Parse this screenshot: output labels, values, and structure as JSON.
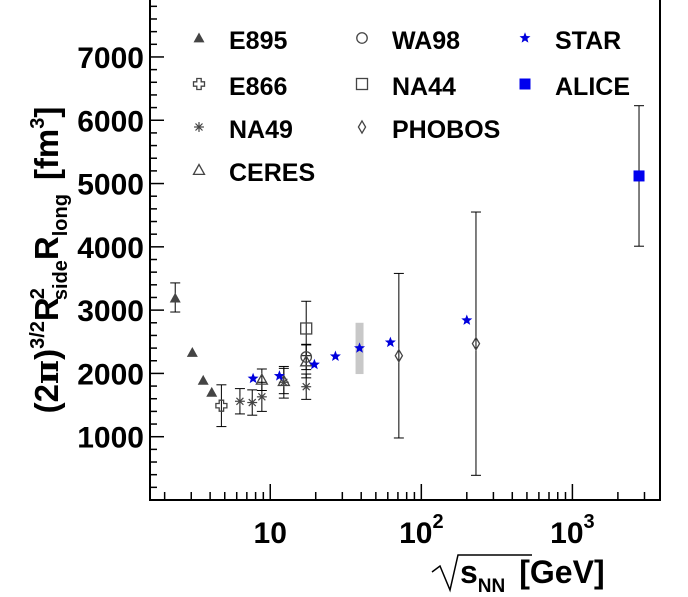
{
  "chart_data": {
    "type": "scatter",
    "xscale": "log",
    "xlim": [
      1.6,
      3800
    ],
    "ylim": [
      0,
      7900
    ],
    "grid": false,
    "legend_position": "top (inside plot)",
    "ylabel": {
      "prefix": "(2",
      "pi": "π",
      "close": ")",
      "exp": "3/2",
      "r1": "R",
      "r1_sup": "2",
      "r1_sub": "side",
      "r2": "R",
      "r2_sub": "long",
      "unit_open": "[fm",
      "unit_exp": "3",
      "unit_close": "]"
    },
    "xlabel": {
      "sqrt_sign": "√",
      "s": "s",
      "s_sub": "NN",
      "unit": "[GeV]"
    },
    "y_ticks": [
      "1000",
      "2000",
      "3000",
      "4000",
      "5000",
      "6000",
      "7000"
    ],
    "x_ticks": [
      {
        "base": "10",
        "exp": ""
      },
      {
        "base": "10",
        "exp": "2"
      },
      {
        "base": "10",
        "exp": "3"
      }
    ],
    "series": [
      {
        "name": "E895",
        "marker": "triangle",
        "color": "#444444",
        "points": [
          {
            "x": 2.35,
            "y": 3190,
            "yerr": [
              220,
              240
            ]
          },
          {
            "x": 3.05,
            "y": 2330,
            "yerr": [
              0,
              0
            ]
          },
          {
            "x": 3.6,
            "y": 1890,
            "yerr": [
              0,
              0
            ]
          },
          {
            "x": 4.1,
            "y": 1700,
            "yerr": [
              0,
              0
            ]
          }
        ]
      },
      {
        "name": "E866",
        "marker": "cross",
        "color": "#444444",
        "points": [
          {
            "x": 4.75,
            "y": 1490,
            "yerr": [
              330,
              330
            ]
          }
        ]
      },
      {
        "name": "NA49",
        "marker": "asterisk",
        "color": "#444444",
        "points": [
          {
            "x": 6.3,
            "y": 1560,
            "yerr": [
              200,
              200
            ]
          },
          {
            "x": 7.6,
            "y": 1540,
            "yerr": [
              200,
              200
            ]
          },
          {
            "x": 8.8,
            "y": 1630,
            "yerr": [
              230,
              230
            ]
          },
          {
            "x": 12.3,
            "y": 1860,
            "yerr": [
              250,
              250
            ]
          },
          {
            "x": 17.3,
            "y": 1790,
            "yerr": [
              200,
              200
            ]
          }
        ]
      },
      {
        "name": "CERES",
        "marker": "open-triangle",
        "color": "#444444",
        "points": [
          {
            "x": 8.8,
            "y": 1900,
            "yerr": [
              170,
              170
            ]
          },
          {
            "x": 12.3,
            "y": 1880,
            "yerr": [
              200,
              200
            ]
          },
          {
            "x": 17.3,
            "y": 2190,
            "yerr": [
              260,
              260
            ]
          }
        ]
      },
      {
        "name": "WA98",
        "marker": "open-circle",
        "color": "#444444",
        "points": [
          {
            "x": 17.3,
            "y": 2260,
            "yerr": [
              200,
              200
            ]
          }
        ]
      },
      {
        "name": "NA44",
        "marker": "open-square",
        "color": "#444444",
        "points": [
          {
            "x": 17.3,
            "y": 2710,
            "yerr": [
              430,
              430
            ]
          }
        ]
      },
      {
        "name": "PHOBOS",
        "marker": "open-diamond",
        "color": "#444444",
        "points": [
          {
            "x": 71,
            "y": 2280,
            "yerr": [
              1300,
              1300
            ]
          },
          {
            "x": 230,
            "y": 2470,
            "yerr": [
              2080,
              2080
            ]
          }
        ]
      },
      {
        "name": "STAR",
        "marker": "star",
        "color": "#0000dd",
        "points": [
          {
            "x": 7.7,
            "y": 1920,
            "yerr": [
              0,
              0
            ]
          },
          {
            "x": 11.5,
            "y": 1960,
            "yerr": [
              0,
              0
            ]
          },
          {
            "x": 19.6,
            "y": 2140,
            "yerr": [
              0,
              0
            ]
          },
          {
            "x": 27,
            "y": 2270,
            "yerr": [
              0,
              0
            ]
          },
          {
            "x": 39,
            "y": 2400,
            "yerr": [
              0,
              0
            ]
          },
          {
            "x": 62.4,
            "y": 2490,
            "yerr": [
              0,
              0
            ]
          },
          {
            "x": 200,
            "y": 2840,
            "yerr": [
              0,
              0
            ]
          }
        ]
      },
      {
        "name": "ALICE",
        "marker": "square",
        "color": "#0000ee",
        "points": [
          {
            "x": 2760,
            "y": 5120,
            "yerr": [
              1110,
              1110
            ]
          }
        ]
      }
    ],
    "systematic_band": {
      "x": 39,
      "ylow": 1990,
      "yhigh": 2800,
      "color": "#c8c8c8"
    }
  }
}
